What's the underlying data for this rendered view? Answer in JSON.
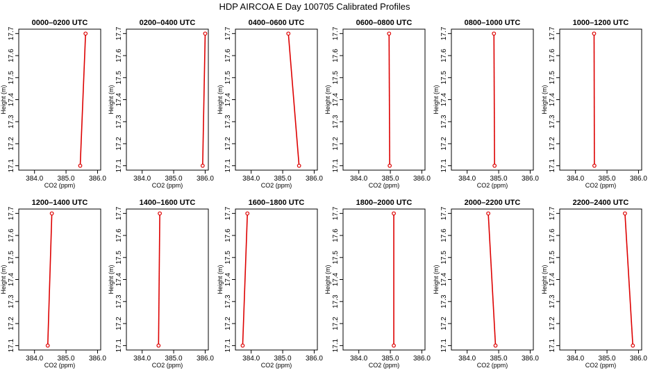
{
  "title": "HDP AIRCOA E  Day 100705  Calibrated Profiles",
  "chart_data": {
    "type": "line",
    "xlabel": "CO2 (ppm)",
    "ylabel": "Height (m)",
    "xlim": [
      383.5,
      386.1
    ],
    "ylim": [
      17.08,
      17.72
    ],
    "xticks": [
      "384.0",
      "385.0",
      "386.0"
    ],
    "yticks": [
      "17.1",
      "17.2",
      "17.3",
      "17.4",
      "17.5",
      "17.6",
      "17.7"
    ],
    "line_color": "#dd0000",
    "marker": "open-circle",
    "panels": [
      {
        "title": "0000–0200 UTC",
        "points": [
          {
            "x": 385.45,
            "y": 17.1
          },
          {
            "x": 385.62,
            "y": 17.7
          }
        ]
      },
      {
        "title": "0200–0400 UTC",
        "points": [
          {
            "x": 385.92,
            "y": 17.1
          },
          {
            "x": 386.0,
            "y": 17.7
          }
        ]
      },
      {
        "title": "0400–0600 UTC",
        "points": [
          {
            "x": 385.52,
            "y": 17.1
          },
          {
            "x": 385.18,
            "y": 17.7
          }
        ]
      },
      {
        "title": "0600–0800 UTC",
        "points": [
          {
            "x": 384.98,
            "y": 17.1
          },
          {
            "x": 384.96,
            "y": 17.7
          }
        ]
      },
      {
        "title": "0800–1000 UTC",
        "points": [
          {
            "x": 384.87,
            "y": 17.1
          },
          {
            "x": 384.85,
            "y": 17.7
          }
        ]
      },
      {
        "title": "1000–1200 UTC",
        "points": [
          {
            "x": 384.6,
            "y": 17.1
          },
          {
            "x": 384.59,
            "y": 17.7
          }
        ]
      },
      {
        "title": "1200–1400 UTC",
        "points": [
          {
            "x": 384.42,
            "y": 17.1
          },
          {
            "x": 384.55,
            "y": 17.7
          }
        ]
      },
      {
        "title": "1400–1600 UTC",
        "points": [
          {
            "x": 384.52,
            "y": 17.1
          },
          {
            "x": 384.56,
            "y": 17.7
          }
        ]
      },
      {
        "title": "1600–1800 UTC",
        "points": [
          {
            "x": 383.73,
            "y": 17.1
          },
          {
            "x": 383.88,
            "y": 17.7
          }
        ]
      },
      {
        "title": "1800–2000 UTC",
        "points": [
          {
            "x": 385.11,
            "y": 17.1
          },
          {
            "x": 385.11,
            "y": 17.7
          }
        ]
      },
      {
        "title": "2000–2200 UTC",
        "points": [
          {
            "x": 384.9,
            "y": 17.1
          },
          {
            "x": 384.67,
            "y": 17.7
          }
        ]
      },
      {
        "title": "2200–2400 UTC",
        "points": [
          {
            "x": 385.82,
            "y": 17.1
          },
          {
            "x": 385.57,
            "y": 17.7
          }
        ]
      }
    ]
  }
}
